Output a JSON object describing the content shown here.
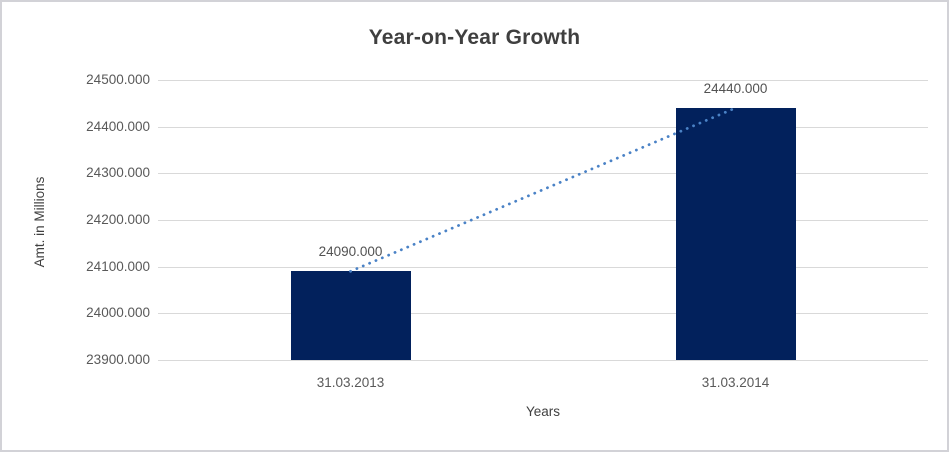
{
  "chart_data": {
    "type": "bar",
    "title": "Year-on-Year Growth",
    "categories": [
      "31.03.2013",
      "31.03.2014"
    ],
    "values": [
      24090,
      24440
    ],
    "data_labels": [
      "24090.000",
      "24440.000"
    ],
    "xlabel": "Years",
    "ylabel": "Amt. in Millions",
    "ylim": [
      23900,
      24500
    ],
    "ytick_step": 100,
    "ytick_labels": [
      "23900.000",
      "24000.000",
      "24100.000",
      "24200.000",
      "24300.000",
      "24400.000",
      "24500.000"
    ],
    "grid": true,
    "legend": "none",
    "trendline": {
      "style": "dotted",
      "from_value": 24090,
      "to_value": 24440
    }
  },
  "colors": {
    "bar": "#02215c",
    "trendline": "#4a82c6",
    "gridline": "#d9d9d9",
    "title_text": "#3f3f3f",
    "axis_text": "#595959",
    "frame_border": "#d2d2d7"
  }
}
